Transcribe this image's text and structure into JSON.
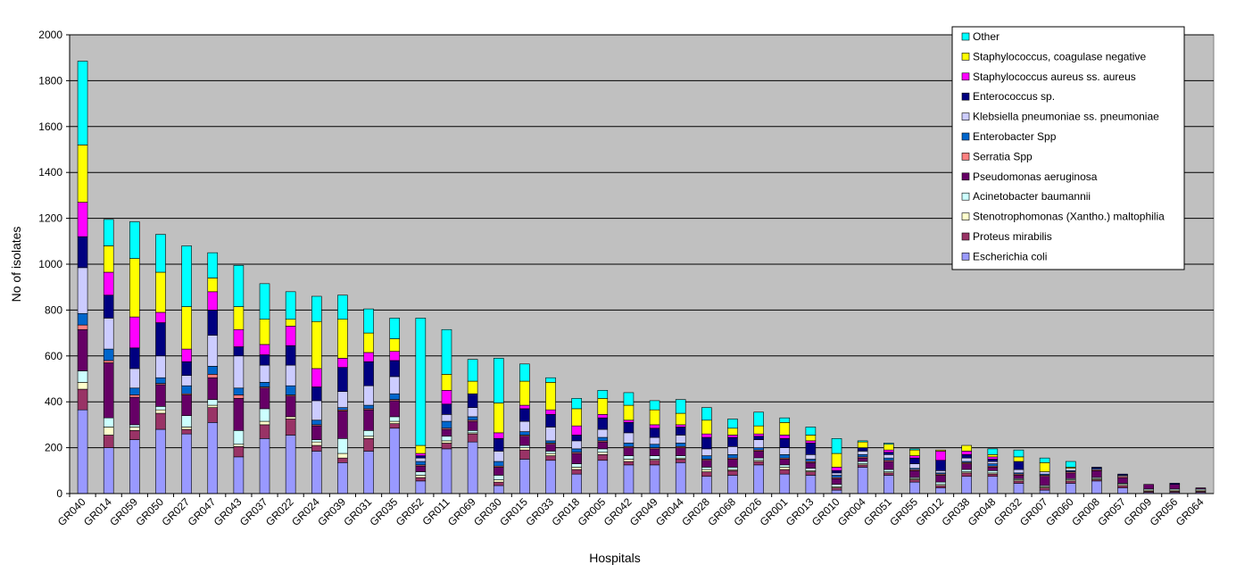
{
  "chart_data": {
    "type": "bar",
    "stacked": true,
    "xlabel": "Hospitals",
    "ylabel": "No of isolates",
    "ylim": [
      0,
      2000
    ],
    "yticks": [
      0,
      200,
      400,
      600,
      800,
      1000,
      1200,
      1400,
      1600,
      1800,
      2000
    ],
    "grid": true,
    "legend_position": "top-right",
    "plot_background": "#c0c0c0",
    "categories": [
      "GR040",
      "GR014",
      "GR059",
      "GR050",
      "GR027",
      "GR047",
      "GR043",
      "GR037",
      "GR022",
      "GR024",
      "GR039",
      "GR031",
      "GR035",
      "GR052",
      "GR011",
      "GR069",
      "GR030",
      "GR015",
      "GR033",
      "GR018",
      "GR005",
      "GR042",
      "GR049",
      "GR044",
      "GR028",
      "GR068",
      "GR026",
      "GR001",
      "GR013",
      "GR010",
      "GR004",
      "GR051",
      "GR055",
      "GR012",
      "GR038",
      "GR048",
      "GR032",
      "GR007",
      "GR060",
      "GR008",
      "GR057",
      "GR009",
      "GR056",
      "GR064"
    ],
    "series": [
      {
        "name": "Escherichia coli",
        "color": "#9999ff",
        "values": [
          365,
          200,
          235,
          280,
          260,
          310,
          160,
          240,
          255,
          185,
          135,
          185,
          285,
          55,
          195,
          225,
          35,
          150,
          145,
          85,
          145,
          125,
          125,
          135,
          75,
          80,
          125,
          85,
          80,
          15,
          115,
          80,
          50,
          25,
          75,
          75,
          45,
          15,
          45,
          55,
          25,
          5,
          5,
          5
        ]
      },
      {
        "name": "Proteus mirabilis",
        "color": "#993366",
        "values": [
          90,
          55,
          40,
          70,
          20,
          65,
          45,
          60,
          70,
          25,
          20,
          55,
          20,
          15,
          25,
          35,
          15,
          40,
          20,
          20,
          25,
          15,
          20,
          15,
          20,
          20,
          15,
          20,
          15,
          10,
          10,
          10,
          10,
          10,
          15,
          10,
          10,
          10,
          10,
          5,
          10,
          5,
          5,
          5
        ]
      },
      {
        "name": "Stenotrophomonas (Xantho.) maltophilia",
        "color": "#ffffcc",
        "values": [
          30,
          35,
          15,
          15,
          10,
          10,
          10,
          15,
          10,
          15,
          20,
          10,
          10,
          10,
          10,
          5,
          10,
          10,
          10,
          10,
          10,
          10,
          5,
          5,
          10,
          5,
          5,
          10,
          5,
          5,
          5,
          5,
          5,
          5,
          5,
          5,
          5,
          5,
          5,
          5,
          5,
          5,
          5,
          5
        ]
      },
      {
        "name": "Acinetobacter baumannii",
        "color": "#ccffff",
        "values": [
          50,
          40,
          10,
          15,
          50,
          25,
          60,
          55,
          0,
          10,
          65,
          25,
          20,
          15,
          20,
          10,
          20,
          10,
          10,
          15,
          15,
          15,
          15,
          10,
          10,
          10,
          10,
          10,
          10,
          10,
          10,
          10,
          5,
          10,
          10,
          10,
          5,
          5,
          5,
          5,
          5,
          5,
          5,
          5
        ]
      },
      {
        "name": "Pseudomonas aeruginosa",
        "color": "#660066",
        "values": [
          180,
          240,
          120,
          95,
          90,
          95,
          140,
          90,
          90,
          60,
          120,
          90,
          70,
          25,
          30,
          40,
          35,
          40,
          30,
          45,
          30,
          35,
          30,
          35,
          30,
          35,
          30,
          25,
          25,
          25,
          15,
          35,
          30,
          30,
          25,
          15,
          15,
          40,
          25,
          30,
          25,
          20,
          20,
          5
        ]
      },
      {
        "name": "Serratia Spp",
        "color": "#ff8080",
        "values": [
          20,
          10,
          10,
          5,
          5,
          15,
          15,
          5,
          5,
          5,
          5,
          5,
          5,
          5,
          5,
          5,
          5,
          5,
          5,
          5,
          5,
          5,
          5,
          5,
          5,
          5,
          5,
          5,
          5,
          5,
          5,
          5,
          5,
          5,
          5,
          5,
          5,
          5,
          5,
          5,
          5,
          0,
          0,
          0
        ]
      },
      {
        "name": "Enterobacter Spp",
        "color": "#0066cc",
        "values": [
          50,
          50,
          30,
          25,
          35,
          35,
          30,
          20,
          40,
          20,
          10,
          15,
          25,
          15,
          30,
          15,
          20,
          15,
          10,
          15,
          15,
          15,
          15,
          15,
          15,
          15,
          10,
          15,
          10,
          10,
          10,
          10,
          5,
          5,
          5,
          10,
          5,
          5,
          5,
          5,
          0,
          0,
          0,
          0
        ]
      },
      {
        "name": "Klebsiella pneumoniae ss. pneumoniae",
        "color": "#ccccff",
        "values": [
          200,
          135,
          85,
          95,
          45,
          135,
          140,
          75,
          90,
          85,
          70,
          85,
          75,
          15,
          30,
          40,
          45,
          45,
          60,
          35,
          35,
          45,
          30,
          35,
          30,
          35,
          35,
          30,
          20,
          10,
          15,
          15,
          20,
          10,
          15,
          10,
          15,
          10,
          10,
          0,
          5,
          0,
          0,
          0
        ]
      },
      {
        "name": "Enterococcus sp.",
        "color": "#000080",
        "values": [
          135,
          100,
          90,
          145,
          60,
          110,
          40,
          45,
          85,
          60,
          105,
          105,
          70,
          10,
          45,
          60,
          55,
          55,
          55,
          25,
          50,
          45,
          40,
          35,
          50,
          40,
          15,
          40,
          50,
          10,
          15,
          10,
          25,
          45,
          15,
          10,
          35,
          0,
          0,
          5,
          5,
          0,
          5,
          0
        ]
      },
      {
        "name": "Staphylococcus aureus ss. aureus",
        "color": "#ff00ff",
        "values": [
          150,
          100,
          135,
          45,
          55,
          80,
          75,
          45,
          85,
          80,
          40,
          40,
          40,
          10,
          60,
          0,
          25,
          15,
          20,
          40,
          15,
          10,
          15,
          10,
          15,
          10,
          10,
          15,
          10,
          15,
          0,
          10,
          10,
          40,
          15,
          10,
          0,
          0,
          0,
          0,
          0,
          0,
          0,
          0
        ]
      },
      {
        "name": "Staphylococcus, coagulase negative",
        "color": "#ffff00",
        "values": [
          250,
          115,
          255,
          175,
          185,
          60,
          100,
          110,
          30,
          205,
          170,
          85,
          55,
          35,
          70,
          55,
          130,
          105,
          120,
          75,
          70,
          65,
          65,
          50,
          60,
          30,
          35,
          55,
          25,
          60,
          25,
          25,
          25,
          5,
          25,
          10,
          20,
          40,
          5,
          0,
          0,
          0,
          0,
          0
        ]
      },
      {
        "name": "Other",
        "color": "#00ffff",
        "values": [
          365,
          115,
          160,
          165,
          265,
          110,
          180,
          155,
          120,
          110,
          105,
          105,
          90,
          555,
          195,
          95,
          195,
          75,
          20,
          45,
          35,
          55,
          40,
          60,
          55,
          40,
          60,
          20,
          35,
          65,
          5,
          5,
          5,
          0,
          0,
          25,
          30,
          20,
          25,
          0,
          0,
          0,
          0,
          0
        ]
      }
    ]
  }
}
